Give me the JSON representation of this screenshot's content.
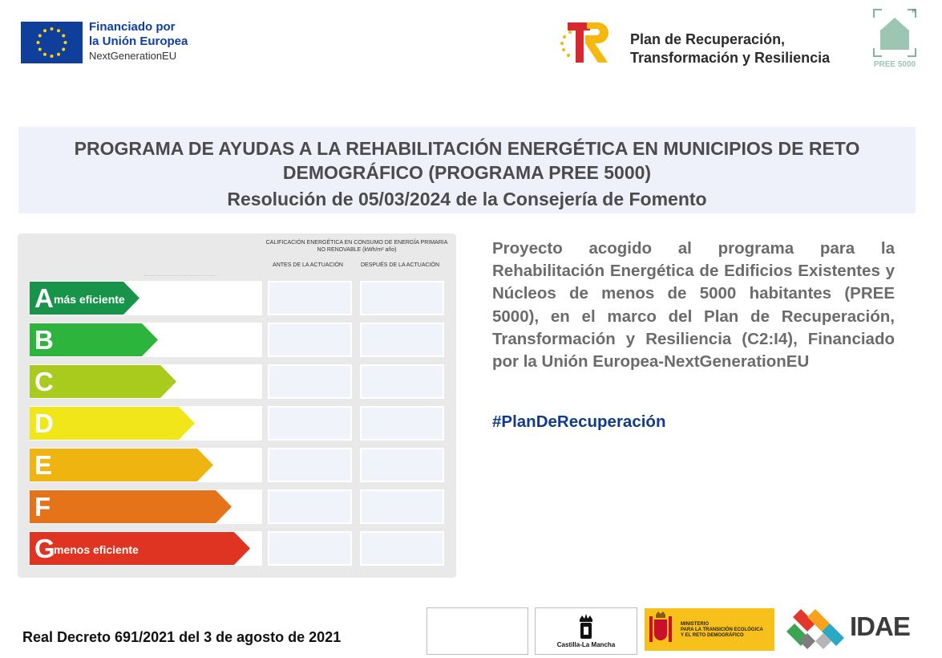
{
  "header": {
    "eu_logo": {
      "icon": "eu-flag-icon",
      "line1": "Financiado por",
      "line2": "la Unión Europea",
      "line3": "NextGenerationEU"
    },
    "prtr_logo": {
      "icon": "prtr-logo-icon",
      "line1": "Plan de Recuperación,",
      "line2": "Transformación y Resiliencia"
    },
    "pree_logo": {
      "icon": "pree-house-icon",
      "label": "PREE 5000"
    }
  },
  "title": {
    "line1": "PROGRAMA DE AYUDAS A LA REHABILITACIÓN ENERGÉTICA EN MUNICIPIOS DE RETO DEMOGRÁFICO (PROGRAMA PREE 5000)",
    "line2": "Resolución de 05/03/2024 de la Consejería de Fomento"
  },
  "energy_label": {
    "header": "CALIFICACIÓN ENERGÉTICA EN CONSUMO DE ENERGÍA PRIMARIA NO RENOVABLE",
    "header_unit": "(kWh/m² año)",
    "col_before": "ANTES DE LA ACTUACIÓN",
    "col_after": "DESPUÉS DE LA ACTUACIÓN",
    "ratings": [
      {
        "letter": "A",
        "sub": "más eficiente",
        "color": "#18944a"
      },
      {
        "letter": "B",
        "sub": "",
        "color": "#2cb43c"
      },
      {
        "letter": "C",
        "sub": "",
        "color": "#a8cb1d"
      },
      {
        "letter": "D",
        "sub": "",
        "color": "#f0e61a"
      },
      {
        "letter": "E",
        "sub": "",
        "color": "#f0b410"
      },
      {
        "letter": "F",
        "sub": "",
        "color": "#e4731a"
      },
      {
        "letter": "G",
        "sub": "menos eficiente",
        "color": "#df3422"
      }
    ]
  },
  "description": "Proyecto acogido al programa para la Rehabilitación Energética de Edificios Existentes y Núcleos de menos de 5000 habitantes (PREE 5000), en el marco del Plan de Recuperación, Transformación y Resiliencia (C2:I4), Financiado por la Unión Europea-NextGenerationEU",
  "hashtag": "#PlanDeRecuperación",
  "footer": {
    "decree": "Real Decreto 691/2021 del 3 de agosto de 2021",
    "clm_logo": {
      "icon": "castilla-la-mancha-crown-icon",
      "label": "Castilla-La Mancha"
    },
    "ministry_logo": {
      "icon": "spain-coat-of-arms-icon",
      "line1": "MINISTERIO",
      "line2": "PARA LA TRANSICIÓN ECOLÓGICA",
      "line3": "Y EL RETO DEMOGRÁFICO"
    },
    "idae_logo": {
      "icon": "idae-logo-icon",
      "label": "IDAE"
    }
  }
}
